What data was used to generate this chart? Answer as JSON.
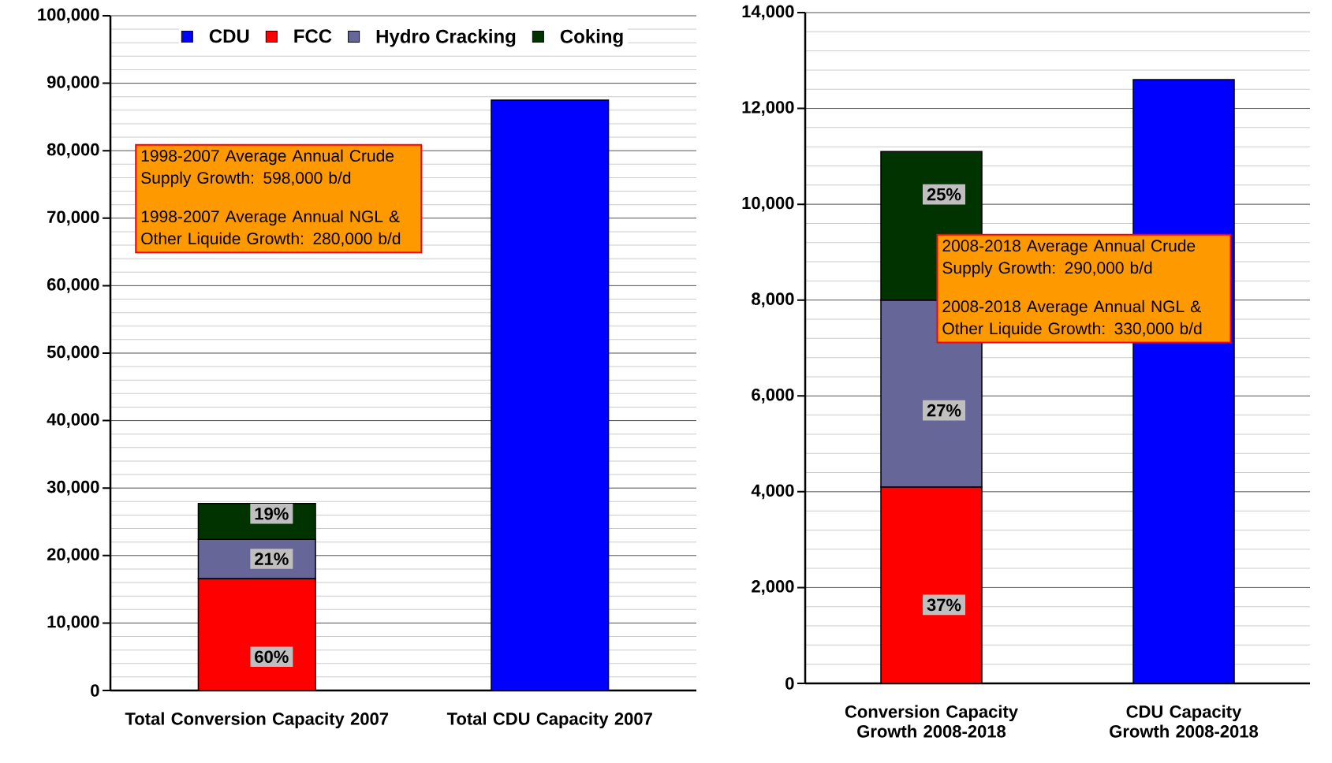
{
  "chart_data": [
    {
      "type": "bar",
      "stacked": true,
      "categories": [
        "Total Conversion Capacity 2007",
        "Total CDU Capacity 2007"
      ],
      "series": [
        {
          "name": "CDU",
          "color": "#0000ff",
          "values": [
            null,
            87500
          ]
        },
        {
          "name": "FCC",
          "color": "#ff0000",
          "values": [
            16600,
            null
          ]
        },
        {
          "name": "Hydro Cracking",
          "color": "#666699",
          "values": [
            5800,
            null
          ]
        },
        {
          "name": "Coking",
          "color": "#003300",
          "values": [
            5300,
            null
          ]
        }
      ],
      "ylim": [
        0,
        100000
      ],
      "yticks": [
        {
          "value": 0,
          "label": "0"
        },
        {
          "value": 10000,
          "label": "10,000"
        },
        {
          "value": 20000,
          "label": "20,000"
        },
        {
          "value": 30000,
          "label": "30,000"
        },
        {
          "value": 40000,
          "label": "40,000"
        },
        {
          "value": 50000,
          "label": "50,000"
        },
        {
          "value": 60000,
          "label": "60,000"
        },
        {
          "value": 70000,
          "label": "70,000"
        },
        {
          "value": 80000,
          "label": "80,000"
        },
        {
          "value": 90000,
          "label": "90,000"
        },
        {
          "value": 100000,
          "label": "100,000"
        }
      ],
      "grid": true,
      "legend": "top",
      "annotations": [
        "1998-2007 Average Annual Crude Supply Growth: 598,000 b/d",
        "1998-2007 Average Annual NGL & Other Liquide Growth: 280,000 b/d",
        "60%",
        "21%",
        "19%"
      ]
    },
    {
      "type": "bar",
      "stacked": true,
      "categories": [
        "Conversion Capacity Growth 2008-2018",
        "CDU Capacity Growth 2008-2018"
      ],
      "series": [
        {
          "color": "#0000ff",
          "values": [
            null,
            12600
          ]
        },
        {
          "color": "#ff0000",
          "values": [
            4100,
            null
          ]
        },
        {
          "color": "#666699",
          "values": [
            3900,
            null
          ]
        },
        {
          "color": "#003300",
          "values": [
            3100,
            null
          ]
        }
      ],
      "ylim": [
        0,
        14000
      ],
      "yticks": [
        0,
        {
          "value": 2000,
          "label": "2,000"
        },
        {
          "value": 4000,
          "label": "4,000"
        },
        {
          "value": 6000,
          "label": "6,000"
        },
        {
          "value": 8000,
          "label": "8,000"
        },
        {
          "value": 10000,
          "label": "10,000"
        },
        {
          "value": 12000,
          "label": "12,000"
        },
        {
          "value": 14000,
          "label": "14,000"
        }
      ],
      "grid": true,
      "annotations": [
        "2008-2018 Average Annual Crude Supply Growth: 290,000 b/d",
        "2008-2018 Average Annual NGL & Other Liquide Growth: 330,000 b/d",
        "37%",
        "27%",
        "25%"
      ]
    }
  ]
}
